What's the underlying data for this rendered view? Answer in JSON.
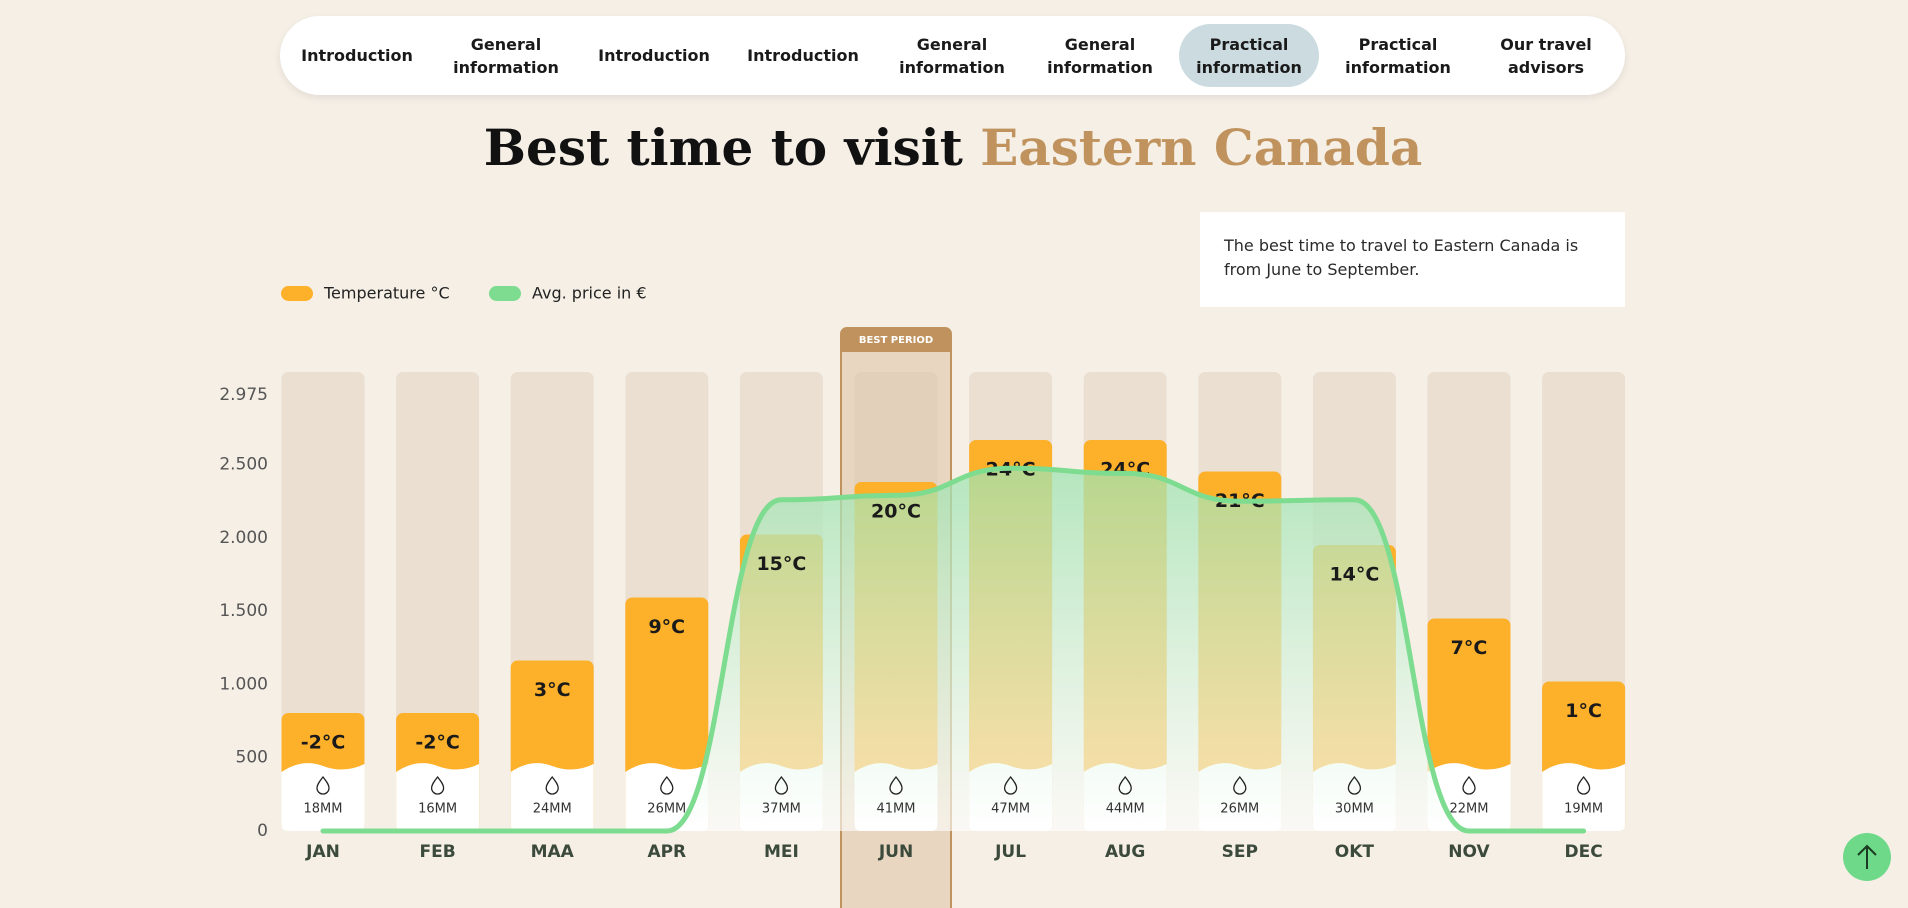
{
  "nav": {
    "items": [
      "Introduction",
      "General information",
      "Introduction",
      "Introduction",
      "General information",
      "General information",
      "Practical information",
      "Practical information",
      "Our travel advisors"
    ]
  },
  "title": "Best time to visit",
  "title_highlight": "Eastern Canada",
  "info": "The best time to travel to Eastern Canada is from June to September.",
  "chart_data": {
    "type": "bar",
    "categories": [
      "JAN",
      "FEB",
      "MAA",
      "APR",
      "MEI",
      "JUN",
      "JUL",
      "AUG",
      "SEP",
      "OKT",
      "NOV",
      "DEC"
    ],
    "series": [
      {
        "name": "Temperature °C",
        "color": "#fdb02a",
        "values": [
          -2,
          -2,
          3,
          9,
          15,
          20,
          24,
          24,
          21,
          14,
          7,
          1
        ],
        "value_labels": [
          "-2°C",
          "-2°C",
          "3°C",
          "9°C",
          "15°C",
          "20°C",
          "24°C",
          "24°C",
          "21°C",
          "14°C",
          "7°C",
          "1°C"
        ]
      },
      {
        "name": "Avg. price in €",
        "color": "#7ddc8f",
        "values": [
          0,
          0,
          0,
          0,
          2260,
          2290,
          2475,
          2440,
          2250,
          2260,
          0,
          0
        ]
      }
    ],
    "rainfall": {
      "values": [
        18,
        16,
        24,
        26,
        37,
        41,
        47,
        44,
        26,
        30,
        22,
        19
      ],
      "value_labels": [
        "18MM",
        "16MM",
        "24MM",
        "26MM",
        "37MM",
        "41MM",
        "47MM",
        "44MM",
        "26MM",
        "30MM",
        "22MM",
        "19MM"
      ]
    },
    "ylim": [
      0,
      2975
    ],
    "yticks": [
      0,
      500,
      {
        "value": 1000,
        "label": "1.000"
      },
      {
        "value": 1500,
        "label": "1.500"
      },
      {
        "value": 2000,
        "label": "2.000"
      },
      {
        "value": 2500,
        "label": "2.500"
      },
      {
        "value": 2975,
        "label": "2.975"
      }
    ],
    "best_period": {
      "label": "BEST PERIOD",
      "category_index": 5
    }
  }
}
